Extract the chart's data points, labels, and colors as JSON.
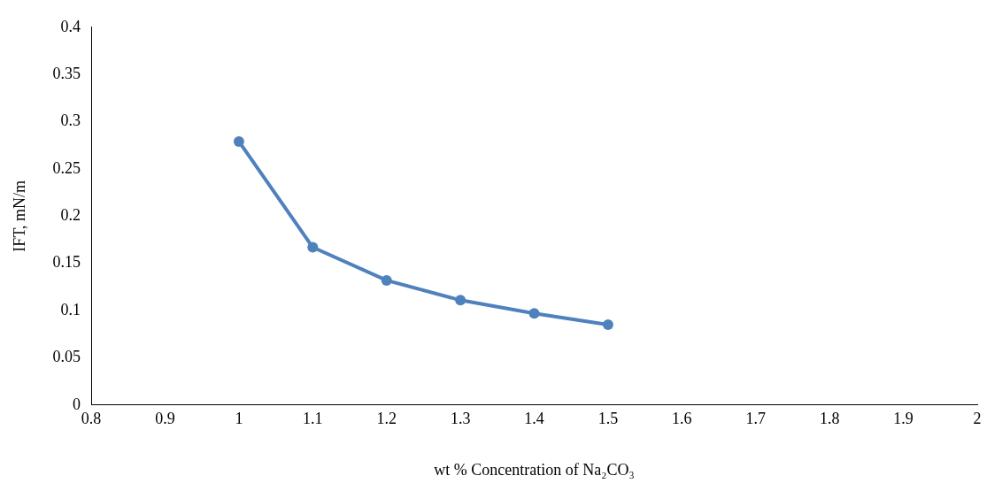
{
  "chart_data": {
    "type": "line",
    "xlabel": "wt % Concentration of Na₂CO₃",
    "ylabel": "IFT, mN/m",
    "x": [
      1,
      1.1,
      1.2,
      1.3,
      1.4,
      1.5
    ],
    "series": [
      {
        "color": "#4f81bd",
        "values": [
          0.279,
          0.167,
          0.132,
          0.111,
          0.097,
          0.085
        ]
      }
    ],
    "xlim": [
      0.8,
      2
    ],
    "xticks": [
      0.8,
      0.9,
      1,
      1.1,
      1.2,
      1.3,
      1.4,
      1.5,
      1.6,
      1.7,
      1.8,
      1.9,
      2
    ],
    "ylim": [
      0,
      0.4
    ],
    "yticks": [
      0,
      0.05,
      0.1,
      0.15,
      0.2,
      0.25,
      0.3,
      0.35,
      0.4
    ],
    "grid": false,
    "legend": false,
    "marker": "circle",
    "line_style": "solid"
  }
}
